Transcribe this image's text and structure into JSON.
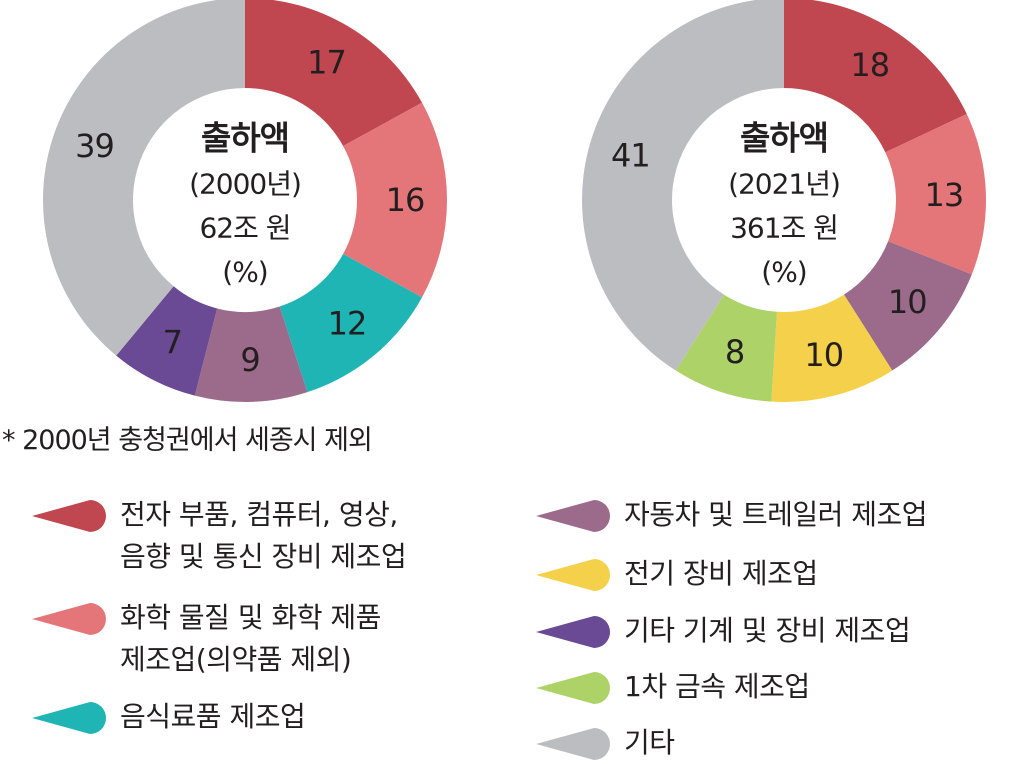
{
  "chart_data": [
    {
      "type": "pie",
      "donut": true,
      "center_title": "출하액",
      "center_year": "(2000년)",
      "center_total": "62조 원",
      "center_unit": "(%)",
      "slices": [
        {
          "category": "전자 부품, 컴퓨터, 영상, 음향 및 통신 장비 제조업",
          "value": 17,
          "label": "17",
          "color": "#c0474f"
        },
        {
          "category": "화학 물질 및 화학 제품 제조업(의약품 제외)",
          "value": 16,
          "label": "16",
          "color": "#e4767a"
        },
        {
          "category": "음식료품 제조업",
          "value": 12,
          "label": "12",
          "color": "#1fb5b5"
        },
        {
          "category": "자동차 및 트레일러 제조업",
          "value": 9,
          "label": "9",
          "color": "#9c6b8c"
        },
        {
          "category": "기타 기계 및 장비 제조업",
          "value": 7,
          "label": "7",
          "color": "#6a4a94"
        },
        {
          "category": "기타",
          "value": 39,
          "label": "39",
          "color": "#bcbdc1"
        }
      ]
    },
    {
      "type": "pie",
      "donut": true,
      "center_title": "출하액",
      "center_year": "(2021년)",
      "center_total": "361조 원",
      "center_unit": "(%)",
      "slices": [
        {
          "category": "전자 부품, 컴퓨터, 영상, 음향 및 통신 장비 제조업",
          "value": 18,
          "label": "18",
          "color": "#c0474f"
        },
        {
          "category": "화학 물질 및 화학 제품 제조업(의약품 제외)",
          "value": 13,
          "label": "13",
          "color": "#e4767a"
        },
        {
          "category": "자동차 및 트레일러 제조업",
          "value": 10,
          "label": "10",
          "color": "#9c6b8c"
        },
        {
          "category": "전기 장비 제조업",
          "value": 10,
          "label": "10",
          "color": "#f5d04a"
        },
        {
          "category": "1차 금속 제조업",
          "value": 8,
          "label": "8",
          "color": "#add267"
        },
        {
          "category": "기타",
          "value": 41,
          "label": "41",
          "color": "#bcbdc1"
        }
      ]
    }
  ],
  "footnote": "* 2000년 충청권에서 세종시 제외",
  "legend": [
    {
      "label": "전자 부품, 컴퓨터, 영상,\n음향 및 통신 장비 제조업",
      "color": "#c0474f"
    },
    {
      "label": "화학 물질 및 화학 제품\n제조업(의약품 제외)",
      "color": "#e4767a"
    },
    {
      "label": "음식료품 제조업",
      "color": "#1fb5b5"
    },
    {
      "label": "자동차 및 트레일러 제조업",
      "color": "#9c6b8c"
    },
    {
      "label": "전기 장비 제조업",
      "color": "#f5d04a"
    },
    {
      "label": "기타 기계 및 장비 제조업",
      "color": "#6a4a94"
    },
    {
      "label": "1차 금속 제조업",
      "color": "#add267"
    },
    {
      "label": "기타",
      "color": "#bcbdc1"
    }
  ]
}
